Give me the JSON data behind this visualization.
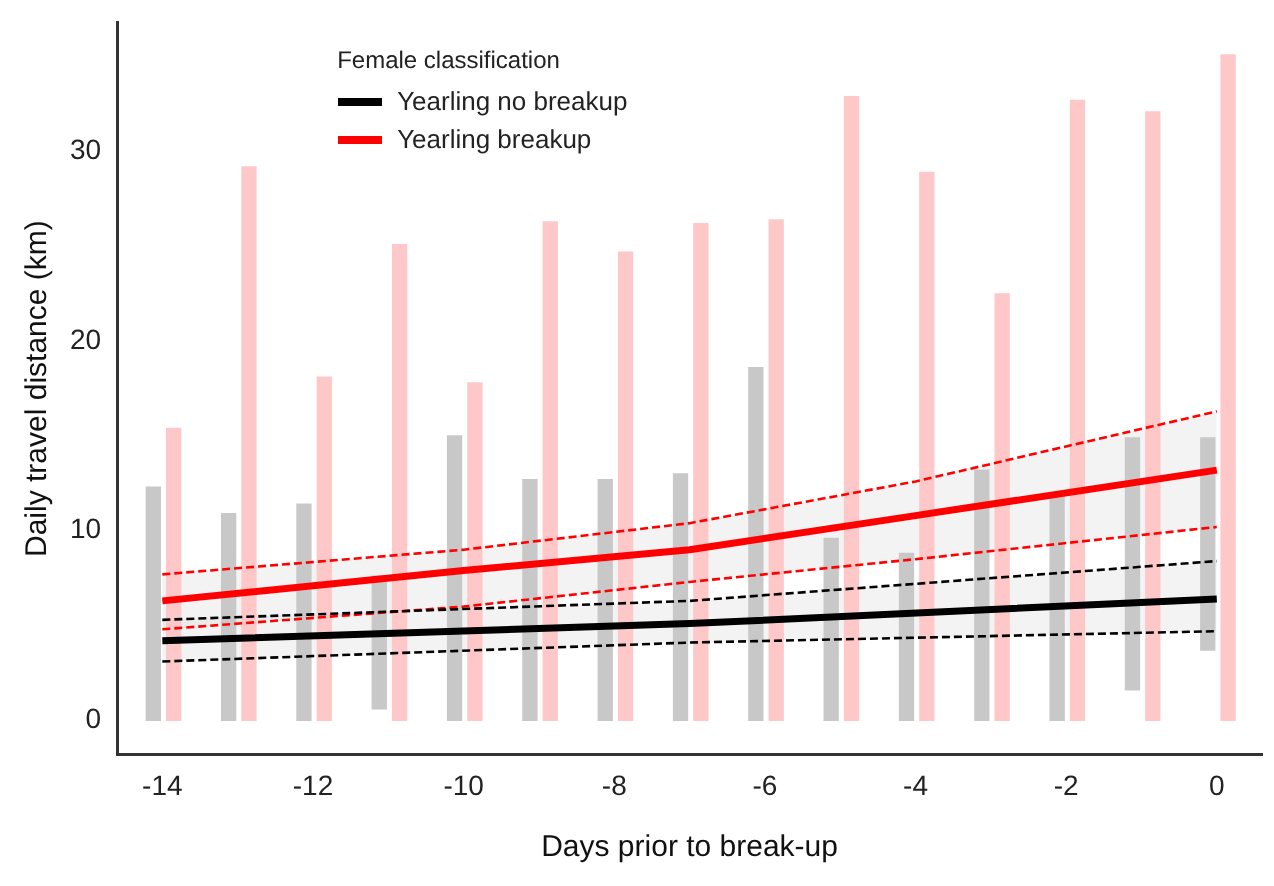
{
  "chart_data": {
    "type": "line",
    "xlabel": "Days prior to break-up",
    "ylabel": "Daily travel distance (km)",
    "legend_title": "Female classification",
    "legend": "top left",
    "grid": false,
    "marker": "none",
    "xlim": [
      -14.6,
      0.6
    ],
    "xticks": [
      -14,
      -12,
      -10,
      -8,
      -6,
      -4,
      -2,
      0
    ],
    "ylim": [
      -1.8,
      36.8
    ],
    "yticks": [
      0,
      10,
      20,
      30
    ],
    "series": [
      {
        "type": "bar",
        "color": "#c8c8c8",
        "x": [
          -14.12,
          -13.12,
          -12.12,
          -11.12,
          -10.12,
          -9.12,
          -8.12,
          -7.12,
          -6.12,
          -5.12,
          -4.12,
          -3.12,
          -2.12,
          -1.12,
          -0.12
        ],
        "base": [
          0,
          0,
          0,
          0.6,
          0,
          0,
          0,
          0,
          0,
          0,
          0,
          0,
          0,
          1.6,
          3.7
        ],
        "values": [
          12.3,
          10.9,
          11.4,
          7.0,
          15.0,
          12.7,
          12.7,
          13.0,
          18.6,
          9.6,
          8.8,
          13.2,
          11.8,
          13.3,
          11.2
        ]
      },
      {
        "type": "bar",
        "color": "#ffc8c8",
        "x": [
          -13.85,
          -12.85,
          -11.85,
          -10.85,
          -9.85,
          -8.85,
          -7.85,
          -6.85,
          -5.85,
          -4.85,
          -3.85,
          -2.85,
          -1.85,
          -0.85,
          0.15
        ],
        "base": [
          0,
          0,
          0,
          0,
          0,
          0,
          0,
          0,
          0,
          0,
          0,
          0,
          0,
          0,
          0
        ],
        "values": [
          15.4,
          29.2,
          18.1,
          25.1,
          17.8,
          26.3,
          24.7,
          26.2,
          26.4,
          32.9,
          28.9,
          22.5,
          32.7,
          32.1,
          35.1
        ]
      },
      {
        "type": "line",
        "color": "#000000",
        "line_style": "dashed",
        "x": [
          -14,
          -7,
          0
        ],
        "values": [
          3.1,
          4.1,
          4.7
        ]
      },
      {
        "type": "line",
        "color": "#000000",
        "line_style": "dashed",
        "x": [
          -14,
          -7,
          0
        ],
        "values": [
          5.3,
          6.3,
          8.4
        ]
      },
      {
        "type": "line",
        "color": "#ff0000",
        "line_style": "dashed",
        "x": [
          -14,
          -10,
          -7,
          -4,
          0
        ],
        "values": [
          4.8,
          6.0,
          7.3,
          8.5,
          10.2
        ]
      },
      {
        "type": "line",
        "color": "#ff0000",
        "line_style": "dashed",
        "x": [
          -14,
          -10,
          -7,
          -4,
          0
        ],
        "values": [
          7.7,
          9.0,
          10.4,
          12.6,
          16.3
        ]
      },
      {
        "type": "line",
        "name": "Yearling no breakup",
        "color": "#000000",
        "line_style": "solid",
        "x": [
          -14,
          -7,
          0
        ],
        "values": [
          4.2,
          5.1,
          6.4
        ],
        "lower": [
          3.1,
          4.1,
          4.7
        ],
        "upper": [
          5.3,
          6.3,
          8.4
        ]
      },
      {
        "type": "line",
        "name": "Yearling breakup",
        "color": "#ff0000",
        "line_style": "solid",
        "x": [
          -14,
          -10,
          -7,
          -4,
          0
        ],
        "values": [
          6.3,
          7.9,
          9.0,
          10.8,
          13.2
        ],
        "lower": [
          4.8,
          6.0,
          7.3,
          8.5,
          10.2
        ],
        "upper": [
          7.7,
          9.0,
          10.4,
          12.6,
          16.3
        ]
      }
    ]
  }
}
